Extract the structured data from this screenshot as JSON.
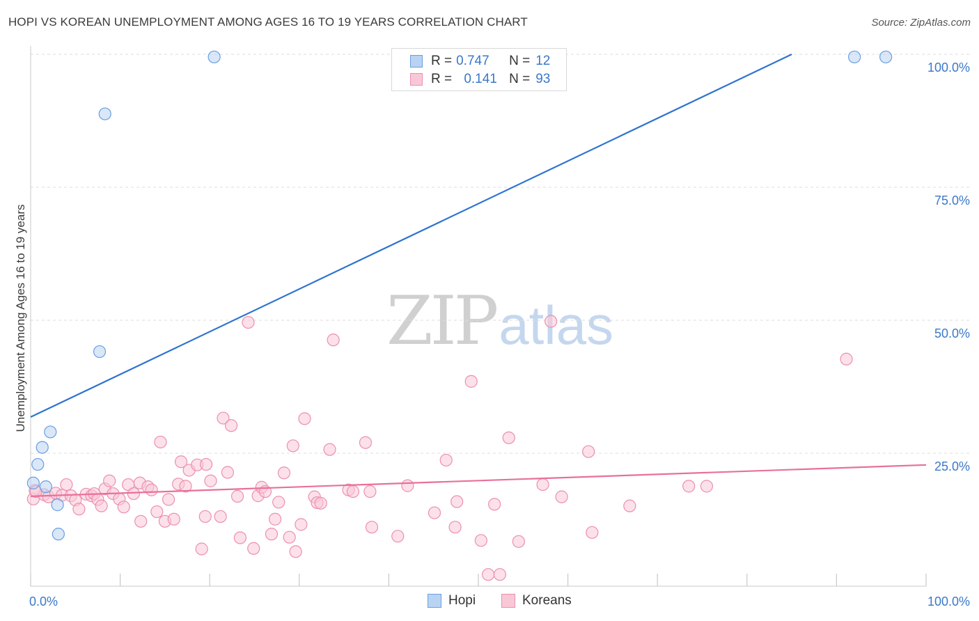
{
  "title": "HOPI VS KOREAN UNEMPLOYMENT AMONG AGES 16 TO 19 YEARS CORRELATION CHART",
  "source": "Source: ZipAtlas.com",
  "watermark": {
    "zip": "ZIP",
    "atlas": "atlas"
  },
  "legend": {
    "rows": [
      {
        "r_label": "R =",
        "r_value": "0.747",
        "n_label": "N =",
        "n_value": "12"
      },
      {
        "r_label": "R =",
        "r_value": "0.141",
        "n_label": "N =",
        "n_value": "93"
      }
    ]
  },
  "colors": {
    "hopi_fill": "#b9d3f3",
    "hopi_stroke": "#6a9ee0",
    "hopi_line": "#2e74d0",
    "korean_fill": "#f9c8d7",
    "korean_stroke": "#ec8fae",
    "korean_line": "#e8709a",
    "tick_label": "#3a78c9",
    "grid": "#dedede"
  },
  "chart_data": {
    "type": "scatter",
    "title": "HOPI VS KOREAN UNEMPLOYMENT AMONG AGES 16 TO 19 YEARS CORRELATION CHART",
    "xlabel": "",
    "ylabel": "Unemployment Among Ages 16 to 19 years",
    "xlim": [
      0,
      100
    ],
    "ylim": [
      0,
      100
    ],
    "x_tick_labels": [
      "0.0%",
      "100.0%"
    ],
    "y_ticks": [
      25,
      50,
      75,
      100
    ],
    "y_tick_labels": [
      "25.0%",
      "50.0%",
      "75.0%",
      "100.0%"
    ],
    "grid": true,
    "legend_position": "top-center",
    "series": [
      {
        "name": "Hopi",
        "R": 0.747,
        "N": 12,
        "trend": {
          "x0": 0,
          "y0": 31.8,
          "x1": 85,
          "y1": 100
        },
        "points": [
          {
            "x": 20.5,
            "y": 99.5
          },
          {
            "x": 92,
            "y": 99.5
          },
          {
            "x": 95.5,
            "y": 99.5
          },
          {
            "x": 8.3,
            "y": 88.8
          },
          {
            "x": 7.7,
            "y": 44.1
          },
          {
            "x": 2.2,
            "y": 29
          },
          {
            "x": 1.3,
            "y": 26.1
          },
          {
            "x": 0.8,
            "y": 22.9
          },
          {
            "x": 0.3,
            "y": 19.4
          },
          {
            "x": 1.7,
            "y": 18.7
          },
          {
            "x": 3,
            "y": 15.3
          },
          {
            "x": 3.1,
            "y": 9.8
          }
        ]
      },
      {
        "name": "Koreans",
        "R": 0.141,
        "N": 93,
        "trend": {
          "x0": 0,
          "y0": 16.9,
          "x1": 100,
          "y1": 22.8
        },
        "points": [
          {
            "x": 0.3,
            "y": 16.4
          },
          {
            "x": 0.5,
            "y": 18
          },
          {
            "x": 1.5,
            "y": 17.2
          },
          {
            "x": 2,
            "y": 16.8
          },
          {
            "x": 2.8,
            "y": 17.5
          },
          {
            "x": 3.5,
            "y": 17.1
          },
          {
            "x": 4,
            "y": 19.1
          },
          {
            "x": 4.5,
            "y": 17
          },
          {
            "x": 5,
            "y": 16.2
          },
          {
            "x": 5.4,
            "y": 14.5
          },
          {
            "x": 6.2,
            "y": 17.3
          },
          {
            "x": 6.8,
            "y": 17
          },
          {
            "x": 7.1,
            "y": 17.4
          },
          {
            "x": 7.5,
            "y": 16.3
          },
          {
            "x": 7.9,
            "y": 15.1
          },
          {
            "x": 8.3,
            "y": 18.3
          },
          {
            "x": 8.8,
            "y": 19.8
          },
          {
            "x": 9.2,
            "y": 17.4
          },
          {
            "x": 9.9,
            "y": 16.4
          },
          {
            "x": 10.4,
            "y": 14.9
          },
          {
            "x": 10.9,
            "y": 19.1
          },
          {
            "x": 11.5,
            "y": 17.4
          },
          {
            "x": 12.2,
            "y": 19.4
          },
          {
            "x": 12.3,
            "y": 12.2
          },
          {
            "x": 13.1,
            "y": 18.7
          },
          {
            "x": 13.5,
            "y": 18.1
          },
          {
            "x": 14.1,
            "y": 14
          },
          {
            "x": 14.5,
            "y": 27.1
          },
          {
            "x": 15,
            "y": 12.2
          },
          {
            "x": 15.4,
            "y": 16.3
          },
          {
            "x": 16,
            "y": 12.6
          },
          {
            "x": 16.5,
            "y": 19.2
          },
          {
            "x": 16.8,
            "y": 23.4
          },
          {
            "x": 17.3,
            "y": 18.8
          },
          {
            "x": 17.7,
            "y": 21.8
          },
          {
            "x": 18.6,
            "y": 22.8
          },
          {
            "x": 19.1,
            "y": 7
          },
          {
            "x": 19.5,
            "y": 13.1
          },
          {
            "x": 19.6,
            "y": 22.9
          },
          {
            "x": 20.1,
            "y": 19.8
          },
          {
            "x": 21.2,
            "y": 13.1
          },
          {
            "x": 21.5,
            "y": 31.6
          },
          {
            "x": 22,
            "y": 21.4
          },
          {
            "x": 22.4,
            "y": 30.2
          },
          {
            "x": 23.1,
            "y": 16.9
          },
          {
            "x": 23.4,
            "y": 9.1
          },
          {
            "x": 24.3,
            "y": 49.6
          },
          {
            "x": 24.9,
            "y": 7.1
          },
          {
            "x": 25.4,
            "y": 17
          },
          {
            "x": 25.8,
            "y": 18.6
          },
          {
            "x": 26.2,
            "y": 17.8
          },
          {
            "x": 26.9,
            "y": 9.8
          },
          {
            "x": 27.3,
            "y": 12.6
          },
          {
            "x": 27.7,
            "y": 15.8
          },
          {
            "x": 28.3,
            "y": 21.3
          },
          {
            "x": 28.9,
            "y": 9.2
          },
          {
            "x": 29.3,
            "y": 26.4
          },
          {
            "x": 29.6,
            "y": 6.5
          },
          {
            "x": 30.2,
            "y": 11.6
          },
          {
            "x": 30.6,
            "y": 31.5
          },
          {
            "x": 31.7,
            "y": 16.8
          },
          {
            "x": 32,
            "y": 15.7
          },
          {
            "x": 32.4,
            "y": 15.6
          },
          {
            "x": 33.4,
            "y": 25.7
          },
          {
            "x": 33.8,
            "y": 46.3
          },
          {
            "x": 35.5,
            "y": 18.1
          },
          {
            "x": 36,
            "y": 17.8
          },
          {
            "x": 37.4,
            "y": 27
          },
          {
            "x": 37.9,
            "y": 17.8
          },
          {
            "x": 38.1,
            "y": 11.1
          },
          {
            "x": 41,
            "y": 9.4
          },
          {
            "x": 42.1,
            "y": 18.9
          },
          {
            "x": 45.1,
            "y": 13.8
          },
          {
            "x": 46.4,
            "y": 23.7
          },
          {
            "x": 47.4,
            "y": 11.1
          },
          {
            "x": 47.6,
            "y": 15.9
          },
          {
            "x": 49.2,
            "y": 38.5
          },
          {
            "x": 50.3,
            "y": 8.6
          },
          {
            "x": 51.1,
            "y": 2.2
          },
          {
            "x": 51.8,
            "y": 15.4
          },
          {
            "x": 52.4,
            "y": 2.2
          },
          {
            "x": 53.4,
            "y": 27.9
          },
          {
            "x": 54.5,
            "y": 8.4
          },
          {
            "x": 57.2,
            "y": 19.1
          },
          {
            "x": 58.1,
            "y": 49.8
          },
          {
            "x": 59.3,
            "y": 16.8
          },
          {
            "x": 62.3,
            "y": 25.3
          },
          {
            "x": 62.7,
            "y": 10.1
          },
          {
            "x": 66.9,
            "y": 15.1
          },
          {
            "x": 73.5,
            "y": 18.8
          },
          {
            "x": 75.5,
            "y": 18.8
          },
          {
            "x": 91.1,
            "y": 42.7
          },
          {
            "x": 0.6,
            "y": 17.8
          }
        ]
      }
    ]
  },
  "bottom_legend": [
    {
      "label": "Hopi"
    },
    {
      "label": "Koreans"
    }
  ]
}
